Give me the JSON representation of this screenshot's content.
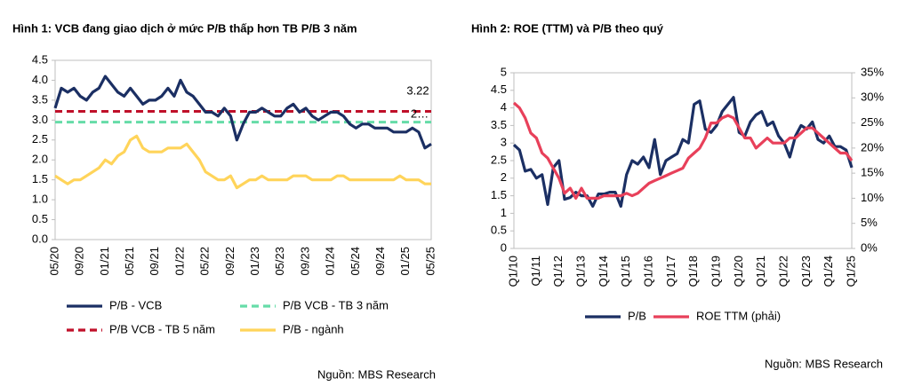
{
  "chart_data": [
    {
      "type": "line",
      "title": "Hình 1: VCB đang giao dịch ở mức P/B thấp hơn TB P/B 3 năm",
      "categories": [
        "05/20",
        null,
        null,
        null,
        "09/20",
        null,
        null,
        null,
        "01/21",
        null,
        null,
        null,
        "05/21",
        null,
        null,
        null,
        "09/21",
        null,
        null,
        null,
        "01/22",
        null,
        null,
        null,
        "05/22",
        null,
        null,
        null,
        "09/22",
        null,
        null,
        null,
        "01/23",
        null,
        null,
        null,
        "05/23",
        null,
        null,
        null,
        "09/23",
        null,
        null,
        null,
        "01/24",
        null,
        null,
        null,
        "05/24",
        null,
        null,
        null,
        "09/24",
        null,
        null,
        null,
        "01/25",
        null,
        null,
        null,
        "05/25"
      ],
      "series": [
        {
          "name": "P/B - VCB",
          "color": "#1b2f63",
          "dash": false,
          "values": [
            3.3,
            3.8,
            3.7,
            3.8,
            3.6,
            3.5,
            3.7,
            3.8,
            4.1,
            3.9,
            3.7,
            3.6,
            3.8,
            3.6,
            3.4,
            3.5,
            3.5,
            3.6,
            3.8,
            3.6,
            4.0,
            3.7,
            3.6,
            3.4,
            3.2,
            3.2,
            3.1,
            3.3,
            3.1,
            2.5,
            2.9,
            3.2,
            3.2,
            3.3,
            3.2,
            3.1,
            3.1,
            3.3,
            3.4,
            3.2,
            3.3,
            3.1,
            3.0,
            3.1,
            3.2,
            3.2,
            3.1,
            2.9,
            2.8,
            2.9,
            2.9,
            2.8,
            2.8,
            2.8,
            2.7,
            2.7,
            2.7,
            2.8,
            2.7,
            2.3,
            2.4
          ]
        },
        {
          "name": "P/B VCB - TB 3 năm",
          "color": "#66dca8",
          "dash": true,
          "values": [
            2.95,
            2.95,
            2.95,
            2.95,
            2.95,
            2.95,
            2.95,
            2.95,
            2.95,
            2.95,
            2.95,
            2.95,
            2.95,
            2.95,
            2.95,
            2.95,
            2.95,
            2.95,
            2.95,
            2.95,
            2.95,
            2.95,
            2.95,
            2.95,
            2.95,
            2.95,
            2.95,
            2.95,
            2.95,
            2.95,
            2.95,
            2.95,
            2.95,
            2.95,
            2.95,
            2.95,
            2.95,
            2.95,
            2.95,
            2.95,
            2.95,
            2.95,
            2.95,
            2.95,
            2.95,
            2.95,
            2.95,
            2.95,
            2.95,
            2.95,
            2.95,
            2.95,
            2.95,
            2.95,
            2.95,
            2.95,
            2.95,
            2.95,
            2.95,
            2.95,
            2.95
          ]
        },
        {
          "name": "P/B VCB - TB 5 năm",
          "color": "#c0102a",
          "dash": true,
          "values": [
            3.22,
            3.22,
            3.22,
            3.22,
            3.22,
            3.22,
            3.22,
            3.22,
            3.22,
            3.22,
            3.22,
            3.22,
            3.22,
            3.22,
            3.22,
            3.22,
            3.22,
            3.22,
            3.22,
            3.22,
            3.22,
            3.22,
            3.22,
            3.22,
            3.22,
            3.22,
            3.22,
            3.22,
            3.22,
            3.22,
            3.22,
            3.22,
            3.22,
            3.22,
            3.22,
            3.22,
            3.22,
            3.22,
            3.22,
            3.22,
            3.22,
            3.22,
            3.22,
            3.22,
            3.22,
            3.22,
            3.22,
            3.22,
            3.22,
            3.22,
            3.22,
            3.22,
            3.22,
            3.22,
            3.22,
            3.22,
            3.22,
            3.22,
            3.22,
            3.22,
            3.22
          ]
        },
        {
          "name": "P/B - ngành",
          "color": "#ffd45a",
          "dash": false,
          "values": [
            1.6,
            1.5,
            1.4,
            1.5,
            1.5,
            1.6,
            1.7,
            1.8,
            2.0,
            1.9,
            2.1,
            2.2,
            2.5,
            2.6,
            2.3,
            2.2,
            2.2,
            2.2,
            2.3,
            2.3,
            2.3,
            2.4,
            2.2,
            2.0,
            1.7,
            1.6,
            1.5,
            1.5,
            1.6,
            1.3,
            1.4,
            1.5,
            1.5,
            1.6,
            1.5,
            1.5,
            1.5,
            1.5,
            1.6,
            1.6,
            1.6,
            1.5,
            1.5,
            1.5,
            1.5,
            1.6,
            1.6,
            1.5,
            1.5,
            1.5,
            1.5,
            1.5,
            1.5,
            1.5,
            1.5,
            1.6,
            1.5,
            1.5,
            1.5,
            1.4,
            1.4
          ]
        }
      ],
      "ylim": [
        0,
        4.5
      ],
      "yticks": [
        {
          "value": 0,
          "label": "0.0"
        },
        0.5,
        {
          "value": 1,
          "label": "1.0"
        },
        1.5,
        {
          "value": 2,
          "label": "2.0"
        },
        2.5,
        {
          "value": 3,
          "label": "3.0"
        },
        3.5,
        {
          "value": 4,
          "label": "4.0"
        },
        4.5
      ],
      "annotations": [
        "3.22",
        "2…"
      ],
      "source": "Nguồn: MBS Research"
    },
    {
      "type": "line",
      "title": "Hình 2: ROE (TTM) và P/B theo quý",
      "categories": [
        "Q1/10",
        null,
        null,
        null,
        "Q1/11",
        null,
        null,
        null,
        "Q1/12",
        null,
        null,
        null,
        "Q1/13",
        null,
        null,
        null,
        "Q1/14",
        null,
        null,
        null,
        "Q1/15",
        null,
        null,
        null,
        "Q1/16",
        null,
        null,
        null,
        "Q1/17",
        null,
        null,
        null,
        "Q1/18",
        null,
        null,
        null,
        "Q1/19",
        null,
        null,
        null,
        "Q1/20",
        null,
        null,
        null,
        "Q1/21",
        null,
        null,
        null,
        "Q1/22",
        null,
        null,
        null,
        "Q1/23",
        null,
        null,
        null,
        "Q1/24",
        null,
        null,
        null,
        "Q1/25"
      ],
      "series": [
        {
          "name": "P/B",
          "color": "#1b2f63",
          "values": [
            2.95,
            2.8,
            2.2,
            2.25,
            2.0,
            2.1,
            1.25,
            2.3,
            2.5,
            1.4,
            1.45,
            1.6,
            1.5,
            1.5,
            1.2,
            1.55,
            1.55,
            1.6,
            1.6,
            1.2,
            2.1,
            2.5,
            2.4,
            2.6,
            2.3,
            3.1,
            2.1,
            2.5,
            2.6,
            2.7,
            3.1,
            3.0,
            4.1,
            4.2,
            3.4,
            3.3,
            3.5,
            3.9,
            4.1,
            4.3,
            3.3,
            3.2,
            3.6,
            3.8,
            3.9,
            3.5,
            3.6,
            3.2,
            3.0,
            2.6,
            3.2,
            3.5,
            3.4,
            3.6,
            3.1,
            3.0,
            3.2,
            2.9,
            2.9,
            2.8,
            2.3
          ]
        },
        {
          "name": "ROE TTM (phải)",
          "color": "#e8405a",
          "axis": "y2",
          "values": [
            29,
            28,
            26,
            23,
            22,
            19,
            18,
            16,
            14,
            11,
            12,
            10,
            12,
            10,
            10,
            10,
            10.5,
            10.5,
            10.5,
            10.5,
            11,
            10.5,
            11,
            12,
            13,
            13.5,
            14,
            14.5,
            15,
            15.5,
            16,
            18,
            19,
            20,
            22,
            25,
            25,
            26,
            26.5,
            26,
            24,
            22,
            22,
            20,
            21,
            22,
            21,
            21,
            21,
            22,
            22,
            23,
            24,
            24,
            23,
            22,
            21,
            20,
            19,
            19,
            17.5
          ]
        }
      ],
      "ylim": [
        0,
        5
      ],
      "yticks": [
        0,
        0.5,
        1,
        1.5,
        2,
        2.5,
        3,
        3.5,
        4,
        4.5,
        5
      ],
      "y2lim": [
        0,
        35
      ],
      "y2ticks": [
        {
          "value": 0,
          "label": "0%"
        },
        {
          "value": 5,
          "label": "5%"
        },
        {
          "value": 10,
          "label": "10%"
        },
        {
          "value": 15,
          "label": "15%"
        },
        {
          "value": 20,
          "label": "20%"
        },
        {
          "value": 25,
          "label": "25%"
        },
        {
          "value": 30,
          "label": "30%"
        },
        {
          "value": 35,
          "label": "35%"
        }
      ],
      "source": "Nguồn: MBS Research"
    }
  ]
}
